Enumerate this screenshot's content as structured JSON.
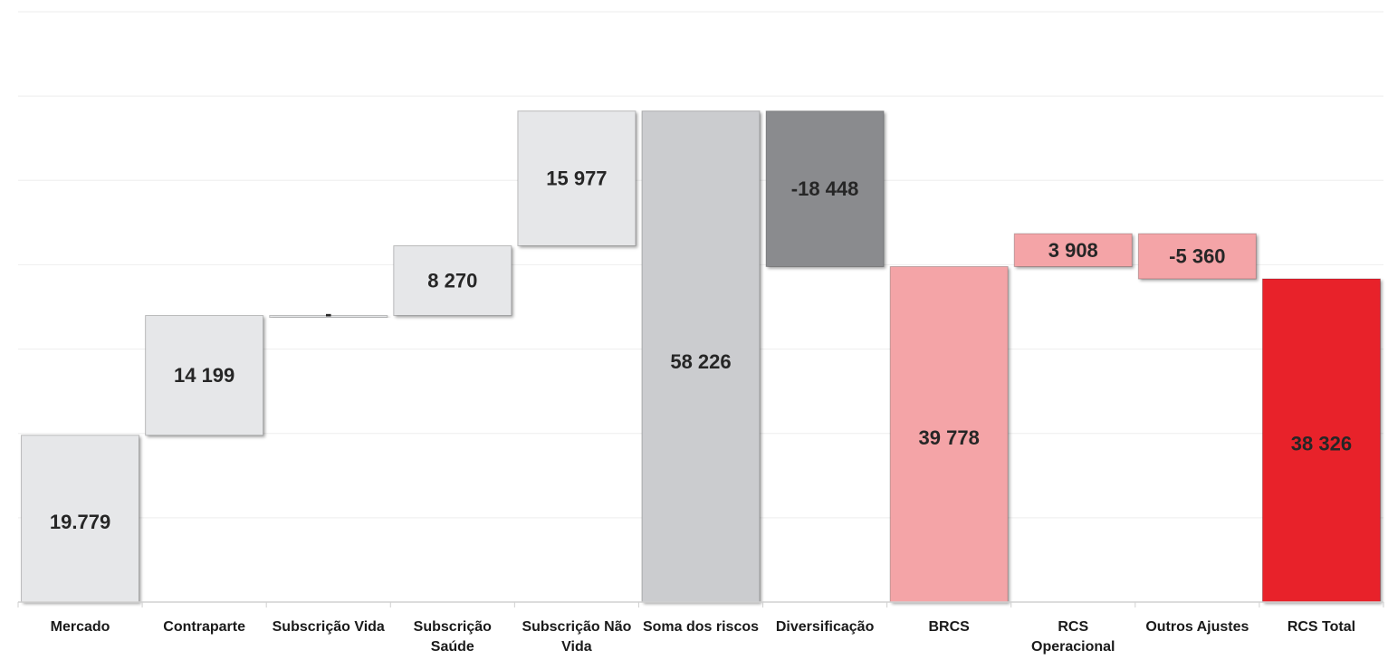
{
  "chart_data": {
    "type": "bar",
    "subtype": "waterfall",
    "title": "",
    "xlabel": "",
    "ylabel": "",
    "ylim": [
      0,
      70000
    ],
    "grid": true,
    "legend": "none",
    "y_axis_labels_shown": false,
    "bars": [
      {
        "category": "Mercado",
        "start": 0,
        "end": 19779,
        "label": "19.779",
        "color": "#e6e7e9",
        "kind": "increase"
      },
      {
        "category": "Contraparte",
        "start": 19779,
        "end": 33978,
        "label": "14 199",
        "color": "#e6e7e9",
        "kind": "increase"
      },
      {
        "category": "Subscrição Vida",
        "start": 33978,
        "end": 33978,
        "label": "-",
        "color": "#e6e7e9",
        "kind": "increase"
      },
      {
        "category": "Subscrição Saúde",
        "start": 33978,
        "end": 42248,
        "label": "8 270",
        "color": "#e6e7e9",
        "kind": "increase"
      },
      {
        "category": "Subscrição Não Vida",
        "start": 42248,
        "end": 58226,
        "label": "15 977",
        "color": "#e6e7e9",
        "kind": "increase"
      },
      {
        "category": "Soma dos riscos",
        "start": 0,
        "end": 58226,
        "label": "58 226",
        "color": "#cbcccf",
        "kind": "total"
      },
      {
        "category": "Diversificação",
        "start": 58226,
        "end": 39778,
        "label": "-18 448",
        "color": "#8a8b8e",
        "kind": "decrease"
      },
      {
        "category": "BRCS",
        "start": 0,
        "end": 39778,
        "label": "39 778",
        "color": "#f4a4a7",
        "kind": "total"
      },
      {
        "category": "RCS Operacional",
        "start": 39778,
        "end": 43686,
        "label": "3 908",
        "color": "#f4a4a7",
        "kind": "increase"
      },
      {
        "category": "Outros Ajustes",
        "start": 43686,
        "end": 38326,
        "label": "-5 360",
        "color": "#f4a4a7",
        "kind": "decrease"
      },
      {
        "category": "RCS Total",
        "start": 0,
        "end": 38326,
        "label": "38 326",
        "color": "#e8202a",
        "kind": "total"
      }
    ],
    "category_labels": [
      [
        "Mercado"
      ],
      [
        "Contraparte"
      ],
      [
        "Subscrição Vida"
      ],
      [
        "Subscrição",
        "Saúde"
      ],
      [
        "Subscrição Não",
        "Vida"
      ],
      [
        "Soma dos riscos"
      ],
      [
        "Diversificação"
      ],
      [
        "BRCS"
      ],
      [
        "RCS",
        "Operacional"
      ],
      [
        "Outros Ajustes"
      ],
      [
        "RCS Total"
      ]
    ]
  }
}
